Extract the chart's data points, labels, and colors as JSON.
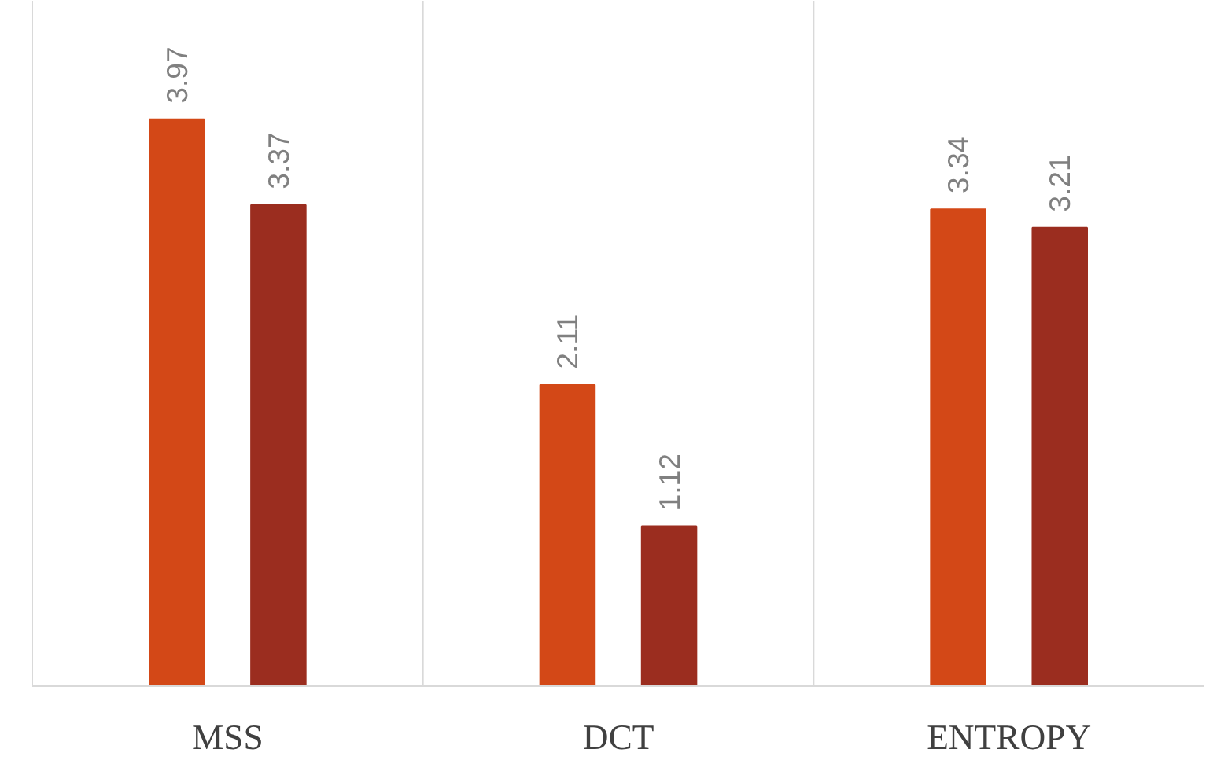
{
  "chart_data": {
    "type": "bar",
    "categories": [
      "MSS",
      "DCT",
      "ENTROPY"
    ],
    "series": [
      {
        "color": "#d34817",
        "values": [
          3.97,
          2.11,
          3.34
        ]
      },
      {
        "color": "#9b2d1f",
        "values": [
          3.37,
          1.12,
          3.21
        ]
      }
    ],
    "ylim": [
      0,
      4.8
    ],
    "data_labels": true,
    "grid": "x"
  }
}
